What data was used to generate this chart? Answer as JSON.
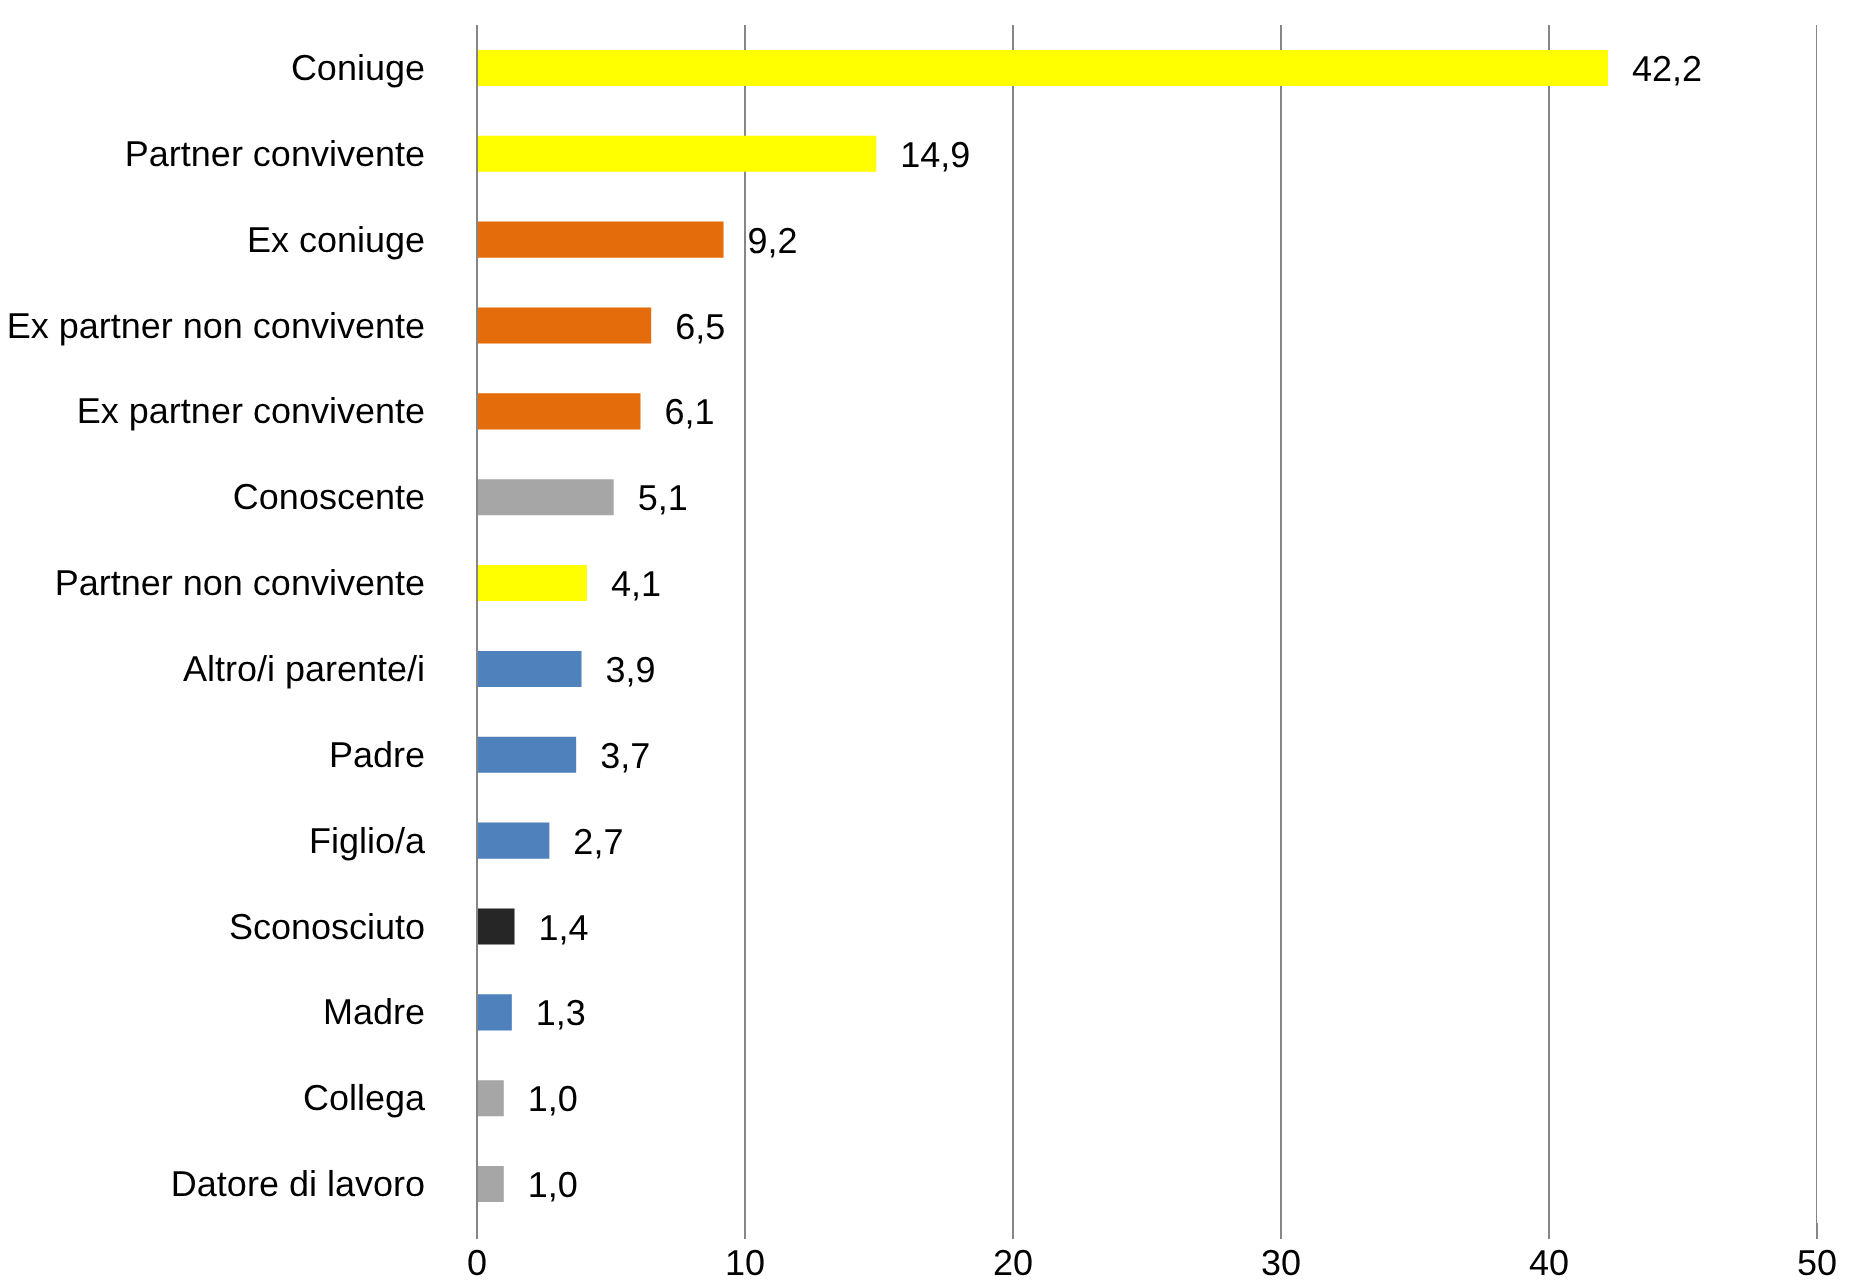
{
  "chart_data": {
    "type": "bar",
    "orientation": "horizontal",
    "categories": [
      "Coniuge",
      "Partner convivente",
      "Ex coniuge",
      "Ex partner non convivente",
      "Ex partner convivente",
      "Conoscente",
      "Partner non convivente",
      "Altro/i parente/i",
      "Padre",
      "Figlio/a",
      "Sconosciuto",
      "Madre",
      "Collega",
      "Datore di lavoro"
    ],
    "values": [
      42.2,
      14.9,
      9.2,
      6.5,
      6.1,
      5.1,
      4.1,
      3.9,
      3.7,
      2.7,
      1.4,
      1.3,
      1.0,
      1.0
    ],
    "value_labels": [
      "42,2",
      "14,9",
      "9,2",
      "6,5",
      "6,1",
      "5,1",
      "4,1",
      "3,9",
      "3,7",
      "2,7",
      "1,4",
      "1,3",
      "1,0",
      "1,0"
    ],
    "colors": [
      "#ffff00",
      "#ffff00",
      "#e46c0a",
      "#e46c0a",
      "#e46c0a",
      "#a6a6a6",
      "#ffff00",
      "#4f81bd",
      "#4f81bd",
      "#4f81bd",
      "#262626",
      "#4f81bd",
      "#a6a6a6",
      "#a6a6a6"
    ],
    "xlim": [
      0,
      50
    ],
    "xticks": [
      0,
      10,
      20,
      30,
      40,
      50
    ],
    "grid": "x"
  }
}
